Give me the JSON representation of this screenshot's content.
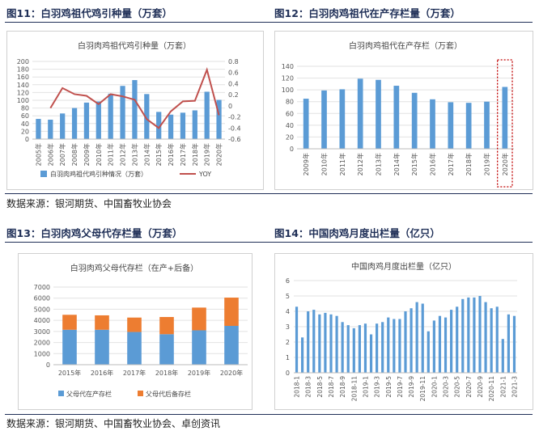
{
  "panels": {
    "p11": {
      "title": "图11：白羽鸡祖代鸡引种量（万套）"
    },
    "p12": {
      "title": "图12：白羽肉鸡祖代在产存栏量（万套）"
    },
    "p13": {
      "title": "图13：白羽肉鸡父母代存栏量（万套）"
    },
    "p14": {
      "title": "图14：中国肉鸡月度出栏量（亿只）"
    }
  },
  "sources": {
    "top": "数据来源：银河期货、中国畜牧业协会",
    "bottom": "数据来源：银河期货、中国畜牧业协会、卓创资讯"
  },
  "colors": {
    "blue": "#5b9bd5",
    "red": "#c0504d",
    "orange": "#ed7d31",
    "highlight": "#c00000"
  },
  "chart_data": [
    {
      "type": "bar",
      "title": "白羽肉鸡祖代鸡引种量（万套）",
      "categories": [
        "2005年",
        "2006年",
        "2007年",
        "2008年",
        "2009年",
        "2010年",
        "2011年",
        "2012年",
        "2013年",
        "2014年",
        "2015年",
        "2016年",
        "2017年",
        "2018年",
        "2019年",
        "2020年"
      ],
      "series": [
        {
          "name": "白羽肉鸡祖代鸡引种情况（万套）",
          "type": "bar",
          "axis": "left",
          "values": [
            52,
            50,
            66,
            80,
            94,
            97,
            117,
            137,
            152,
            116,
            70,
            63,
            68,
            74,
            122,
            101
          ]
        },
        {
          "name": "YOY",
          "type": "line",
          "axis": "right",
          "values": [
            null,
            -0.04,
            0.32,
            0.21,
            0.18,
            0.03,
            0.21,
            0.17,
            0.11,
            -0.24,
            -0.4,
            -0.1,
            0.08,
            0.09,
            0.65,
            -0.17
          ]
        }
      ],
      "ylim": [
        0,
        200
      ],
      "yticks": [
        0,
        20,
        40,
        60,
        80,
        100,
        120,
        140,
        160,
        180,
        200
      ],
      "y2lim": [
        -0.6,
        0.8
      ],
      "y2ticks": [
        "0.8",
        "0.6",
        "0.4",
        "0.2",
        "0",
        "-0.2",
        "-0.4",
        "-0.6"
      ],
      "legend": "bottom"
    },
    {
      "type": "bar",
      "title": "白羽肉鸡祖代在产存栏（万套）",
      "categories": [
        "2009年",
        "2010年",
        "2011年",
        "2012年",
        "2013年",
        "2014年",
        "2015年",
        "2016年",
        "2017年",
        "2018年",
        "2019年",
        "2020年"
      ],
      "values": [
        85,
        99,
        101,
        119,
        117,
        107,
        95,
        84,
        79,
        78,
        80,
        105
      ],
      "ylim": [
        0,
        140
      ],
      "yticks": [
        0,
        20,
        40,
        60,
        80,
        100,
        120,
        140
      ],
      "highlight_category": "2020年"
    },
    {
      "type": "bar",
      "title": "白羽肉鸡父母代存栏（在产+后备）",
      "stacked": true,
      "categories": [
        "2015年",
        "2016年",
        "2017年",
        "2018年",
        "2019年",
        "2020年"
      ],
      "series": [
        {
          "name": "父母代在产存栏",
          "values": [
            3150,
            3150,
            2950,
            2750,
            3100,
            3500
          ]
        },
        {
          "name": "父母代后备存栏",
          "values": [
            1350,
            1300,
            1300,
            1550,
            2050,
            2550
          ]
        }
      ],
      "ylim": [
        0,
        7000
      ],
      "yticks": [
        0,
        1000,
        2000,
        3000,
        4000,
        5000,
        6000,
        7000
      ],
      "legend": "bottom"
    },
    {
      "type": "bar",
      "title": "中国肉鸡月度出栏量（亿只）",
      "categories": [
        "2018-1",
        "2018-2",
        "2018-3",
        "2018-4",
        "2018-5",
        "2018-6",
        "2018-7",
        "2018-8",
        "2018-9",
        "2018-10",
        "2018-11",
        "2018-12",
        "2019-1",
        "2019-2",
        "2019-3",
        "2019-4",
        "2019-5",
        "2019-6",
        "2019-7",
        "2019-8",
        "2019-9",
        "2019-10",
        "2019-11",
        "2019-12",
        "2020-1",
        "2020-2",
        "2020-3",
        "2020-4",
        "2020-5",
        "2020-6",
        "2020-7",
        "2020-8",
        "2020-9",
        "2020-10",
        "2020-11",
        "2020-12",
        "2021-1",
        "2021-2",
        "2021-3"
      ],
      "tick_labels": [
        "2018-1",
        "2018-3",
        "2018-5",
        "2018-7",
        "2018-9",
        "2018-11",
        "2019-1",
        "2019-3",
        "2019-5",
        "2019-7",
        "2019-9",
        "2019-11",
        "2020-1",
        "2020-3",
        "2020-5",
        "2020-7",
        "2020-9",
        "2020-11",
        "2021-1",
        "2021-3"
      ],
      "values": [
        4.3,
        2.3,
        4.0,
        4.1,
        3.8,
        3.9,
        3.8,
        3.7,
        3.3,
        3.1,
        2.9,
        3.1,
        3.2,
        2.5,
        3.2,
        3.3,
        3.6,
        3.5,
        3.5,
        4.0,
        4.2,
        4.6,
        4.5,
        2.7,
        3.4,
        3.7,
        3.6,
        4.1,
        4.3,
        4.8,
        4.9,
        4.9,
        5.0,
        4.6,
        4.2,
        4.3,
        2.2,
        3.8,
        3.7
      ],
      "ylim": [
        0,
        6
      ],
      "yticks": [
        0,
        1,
        2,
        3,
        4,
        5,
        6
      ]
    }
  ]
}
